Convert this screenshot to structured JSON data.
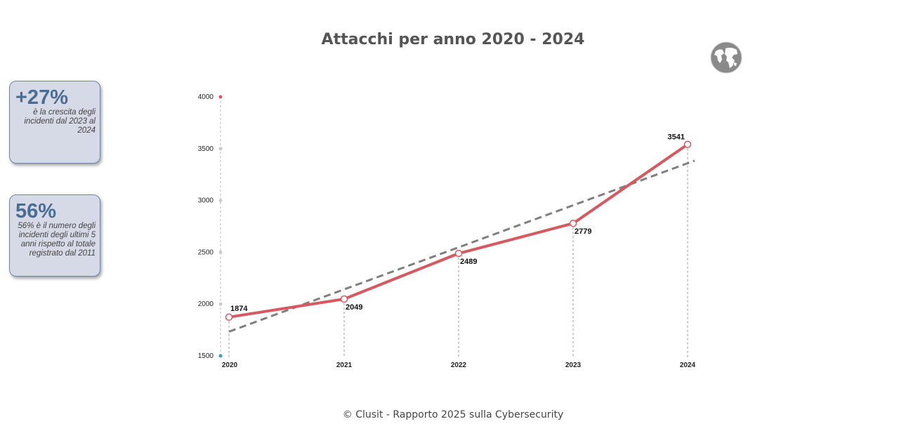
{
  "title": "Attacchi per anno 2020 - 2024",
  "footer": "© Clusit - Rapporto 2025 sulla Cybersecurity",
  "cards": [
    {
      "value": "+27%",
      "text": "è la crescita degli incidenti dal 2023 al 2024"
    },
    {
      "value": "56%",
      "text": "56% è il numero degli incidenti degli ultimi 5 anni rispetto al totale registrato dal 2011"
    }
  ],
  "icons": {
    "globe": "globe-icon"
  },
  "colors": {
    "line": "#d9575f",
    "trend": "#808080",
    "card_bg": "#d6d9e6",
    "card_value": "#4a6d95"
  },
  "chart_data": {
    "type": "line",
    "title": "Attacchi per anno 2020 - 2024",
    "categories": [
      "2020",
      "2021",
      "2022",
      "2023",
      "2024"
    ],
    "series": [
      {
        "values": [
          1874,
          2049,
          2489,
          2779,
          3541
        ]
      }
    ],
    "trendline": "linear",
    "yticks": [
      1500,
      2000,
      2500,
      3000,
      3500,
      4000
    ],
    "ylim": [
      1500,
      4000
    ],
    "grid": false
  }
}
